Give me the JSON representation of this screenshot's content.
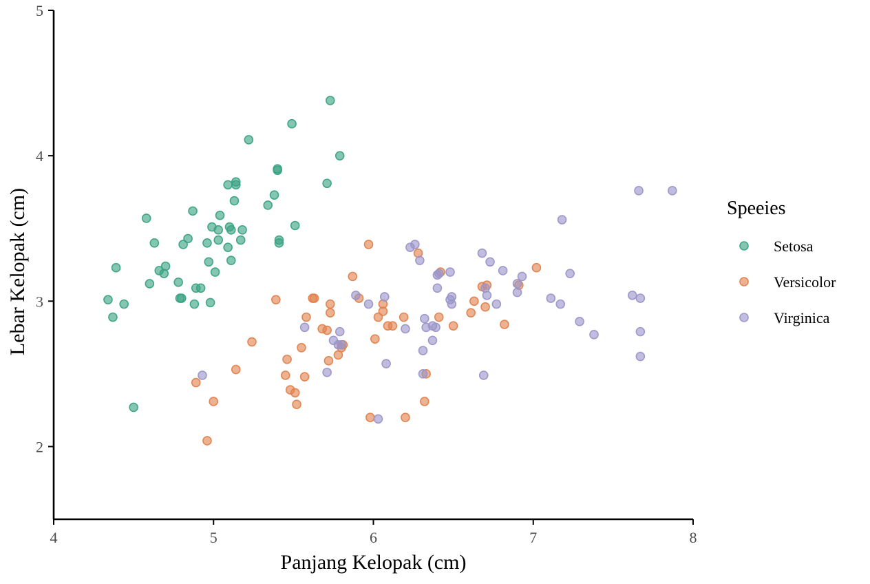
{
  "chart_data": {
    "type": "scatter",
    "xlabel": "Panjang Kelopak (cm)",
    "ylabel": "Lebar Kelopak (cm)",
    "xlim": [
      4,
      8
    ],
    "ylim": [
      1.5,
      5
    ],
    "xticks": [
      "4",
      "5",
      "6",
      "7",
      "8"
    ],
    "yticks": [
      "2",
      "3",
      "4",
      "5"
    ],
    "grid": false,
    "legend_title": "Speeies",
    "legend_position": "right",
    "series": [
      {
        "name": "Setosa",
        "color": "#3aa383",
        "x": [
          4.34,
          4.37,
          4.39,
          4.44,
          4.5,
          4.58,
          4.6,
          4.63,
          4.66,
          4.69,
          4.7,
          4.78,
          4.79,
          4.8,
          4.81,
          4.84,
          4.87,
          4.88,
          4.89,
          4.92,
          4.96,
          4.97,
          4.98,
          4.99,
          5.01,
          5.03,
          5.03,
          5.04,
          5.09,
          5.09,
          5.1,
          5.11,
          5.11,
          5.13,
          5.14,
          5.14,
          5.17,
          5.18,
          5.22,
          5.34,
          5.38,
          5.4,
          5.4,
          5.41,
          5.41,
          5.49,
          5.51,
          5.71,
          5.73,
          5.79
        ],
        "y": [
          3.01,
          2.89,
          3.23,
          2.98,
          2.27,
          3.57,
          3.12,
          3.4,
          3.21,
          3.19,
          3.24,
          3.13,
          3.02,
          3.02,
          3.39,
          3.43,
          3.62,
          2.98,
          3.09,
          3.09,
          3.4,
          3.27,
          2.99,
          3.51,
          3.2,
          3.42,
          3.49,
          3.59,
          3.37,
          3.8,
          3.51,
          3.28,
          3.49,
          3.69,
          3.82,
          3.8,
          3.42,
          3.49,
          4.11,
          3.66,
          3.73,
          3.91,
          3.9,
          3.42,
          3.4,
          4.22,
          3.52,
          3.81,
          4.38,
          4.0
        ]
      },
      {
        "name": "Versicolor",
        "color": "#e0824e",
        "x": [
          4.89,
          4.96,
          5.0,
          5.14,
          5.24,
          5.39,
          5.45,
          5.46,
          5.48,
          5.51,
          5.52,
          5.55,
          5.57,
          5.58,
          5.62,
          5.63,
          5.68,
          5.71,
          5.72,
          5.73,
          5.73,
          5.78,
          5.8,
          5.81,
          5.87,
          5.91,
          5.97,
          5.98,
          6.01,
          6.03,
          6.06,
          6.06,
          6.09,
          6.12,
          6.19,
          6.2,
          6.28,
          6.32,
          6.33,
          6.41,
          6.42,
          6.5,
          6.61,
          6.63,
          6.68,
          6.7,
          6.71,
          6.82,
          6.91,
          7.02
        ],
        "y": [
          2.44,
          2.04,
          2.31,
          2.53,
          2.72,
          3.01,
          2.49,
          2.6,
          2.39,
          2.37,
          2.29,
          2.68,
          2.48,
          2.89,
          3.02,
          3.02,
          2.81,
          2.8,
          2.59,
          2.98,
          2.92,
          2.63,
          2.68,
          2.7,
          3.17,
          3.02,
          3.39,
          2.2,
          2.74,
          2.89,
          2.98,
          2.93,
          2.83,
          2.83,
          2.89,
          2.2,
          3.33,
          2.31,
          2.5,
          2.89,
          3.2,
          2.83,
          2.92,
          3.0,
          3.1,
          2.96,
          3.11,
          2.84,
          3.11,
          3.23
        ]
      },
      {
        "name": "Virginica",
        "color": "#9b95c9",
        "x": [
          4.93,
          5.57,
          5.71,
          5.75,
          5.78,
          5.79,
          5.8,
          5.89,
          5.97,
          6.03,
          6.07,
          6.08,
          6.2,
          6.23,
          6.26,
          6.29,
          6.31,
          6.31,
          6.32,
          6.33,
          6.37,
          6.37,
          6.39,
          6.4,
          6.4,
          6.41,
          6.48,
          6.48,
          6.49,
          6.49,
          6.68,
          6.69,
          6.7,
          6.71,
          6.73,
          6.77,
          6.81,
          6.9,
          6.9,
          6.93,
          7.11,
          7.17,
          7.18,
          7.23,
          7.29,
          7.38,
          7.62,
          7.66,
          7.67,
          7.67,
          7.67,
          7.87
        ],
        "y": [
          2.49,
          2.82,
          2.51,
          2.73,
          2.7,
          2.79,
          2.7,
          3.04,
          2.98,
          2.19,
          3.03,
          2.57,
          2.81,
          3.37,
          3.39,
          3.28,
          2.5,
          2.66,
          2.88,
          2.82,
          2.73,
          2.83,
          2.82,
          3.18,
          3.09,
          3.19,
          3.01,
          3.2,
          3.03,
          2.98,
          3.33,
          2.49,
          3.09,
          3.04,
          3.27,
          2.98,
          3.21,
          3.06,
          3.12,
          3.17,
          3.02,
          2.98,
          3.56,
          3.19,
          2.86,
          2.77,
          3.04,
          3.76,
          3.02,
          2.79,
          2.62,
          3.76
        ]
      }
    ]
  }
}
